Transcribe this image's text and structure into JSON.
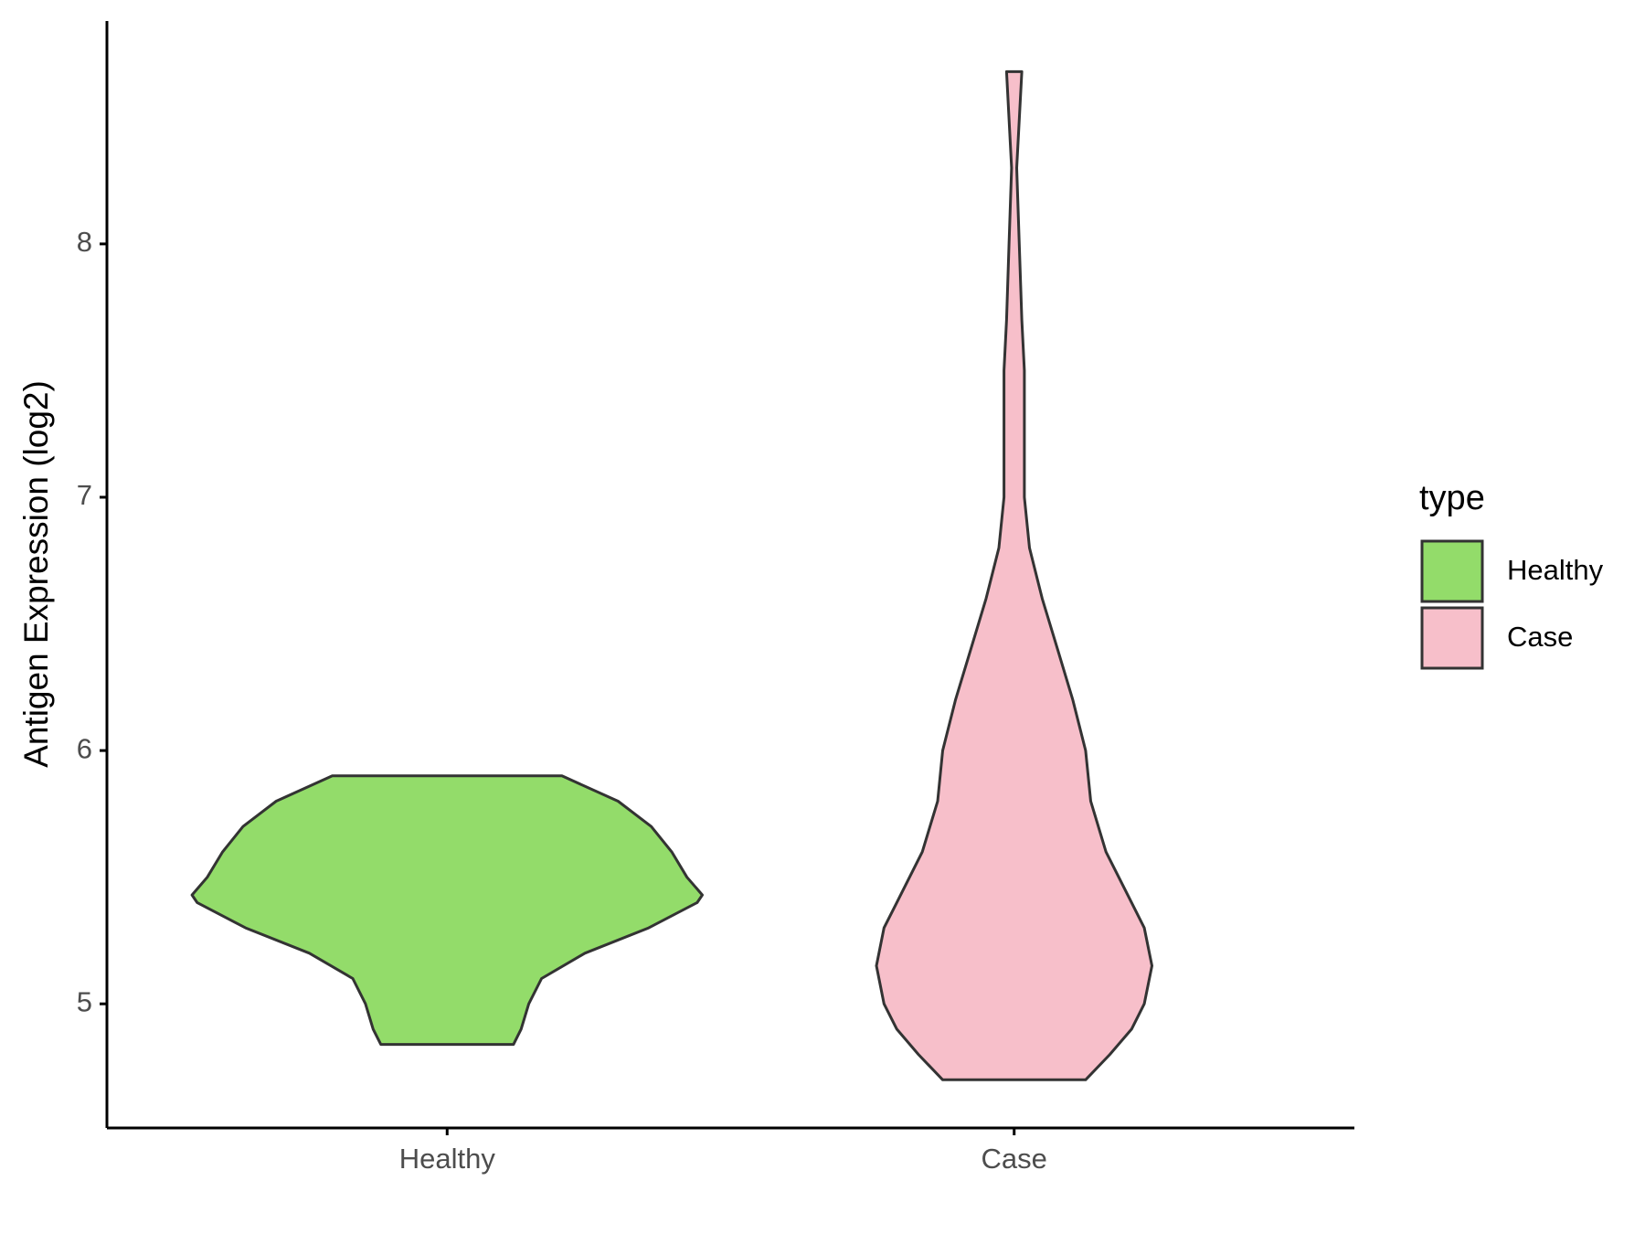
{
  "chart_data": {
    "type": "violin",
    "y_label": "Antigen Expression (log2)",
    "categories": [
      "Healthy",
      "Case"
    ],
    "ylim": [
      4.51,
      8.88
    ],
    "yticks": [
      5,
      6,
      7,
      8
    ],
    "legend_title": "type",
    "legend_position": "right",
    "series": [
      {
        "name": "Healthy",
        "color": "#93dc6a",
        "y": [
          4.84,
          4.9,
          5.0,
          5.1,
          5.2,
          5.3,
          5.4,
          5.43,
          5.5,
          5.6,
          5.7,
          5.8,
          5.9
        ],
        "density": [
          0.26,
          0.29,
          0.32,
          0.37,
          0.54,
          0.79,
          0.98,
          1.0,
          0.94,
          0.88,
          0.8,
          0.67,
          0.45
        ]
      },
      {
        "name": "Case",
        "color": "#f7bfca",
        "y": [
          4.7,
          4.8,
          4.9,
          5.0,
          5.15,
          5.3,
          5.4,
          5.6,
          5.8,
          6.0,
          6.2,
          6.4,
          6.6,
          6.8,
          7.0,
          7.2,
          7.5,
          7.7,
          8.0,
          8.3,
          8.68
        ],
        "density": [
          0.28,
          0.375,
          0.46,
          0.51,
          0.54,
          0.51,
          0.46,
          0.36,
          0.3,
          0.28,
          0.23,
          0.17,
          0.11,
          0.06,
          0.04,
          0.04,
          0.04,
          0.03,
          0.02,
          0.01,
          0.03
        ]
      }
    ]
  }
}
